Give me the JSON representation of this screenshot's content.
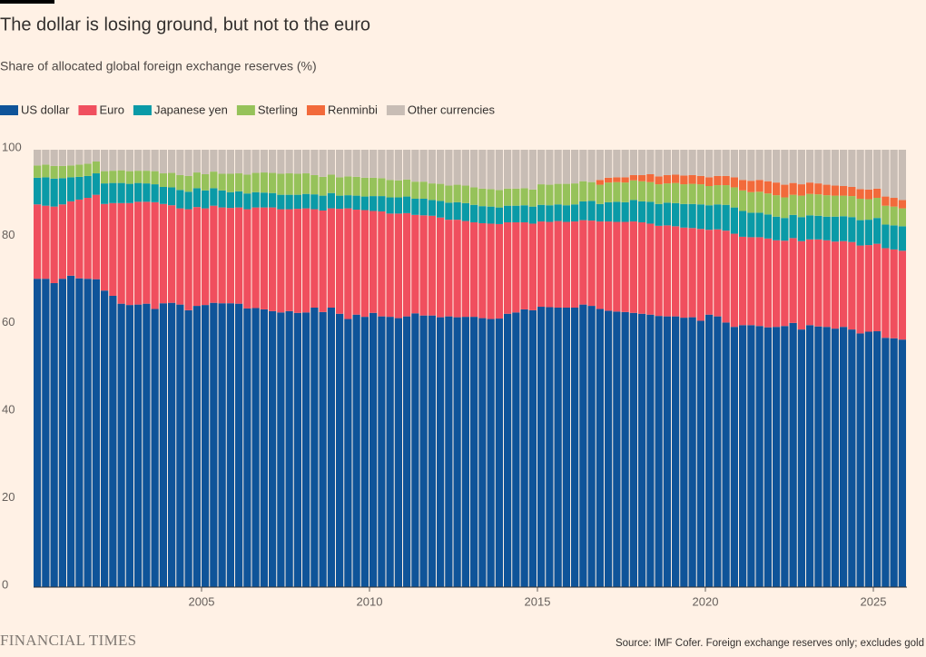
{
  "chart_data": {
    "type": "stacked-bar",
    "title": "The dollar is losing ground, but not to the euro",
    "subtitle": "Share of allocated global foreign exchange reserves (%)",
    "source": "Source: IMF Cofer. Foreign exchange reserves only; excludes gold",
    "brand": "FINANCIAL TIMES",
    "x": [
      2000,
      2000.25,
      2000.5,
      2000.75,
      2001,
      2001.25,
      2001.5,
      2001.75,
      2002,
      2002.25,
      2002.5,
      2002.75,
      2003,
      2003.25,
      2003.5,
      2003.75,
      2004,
      2004.25,
      2004.5,
      2004.75,
      2005,
      2005.25,
      2005.5,
      2005.75,
      2006,
      2006.25,
      2006.5,
      2006.75,
      2007,
      2007.25,
      2007.5,
      2007.75,
      2008,
      2008.25,
      2008.5,
      2008.75,
      2009,
      2009.25,
      2009.5,
      2009.75,
      2010,
      2010.25,
      2010.5,
      2010.75,
      2011,
      2011.25,
      2011.5,
      2011.75,
      2012,
      2012.25,
      2012.5,
      2012.75,
      2013,
      2013.25,
      2013.5,
      2013.75,
      2014,
      2014.25,
      2014.5,
      2014.75,
      2015,
      2015.25,
      2015.5,
      2015.75,
      2016,
      2016.25,
      2016.5,
      2016.75,
      2017,
      2017.25,
      2017.5,
      2017.75,
      2018,
      2018.25,
      2018.5,
      2018.75,
      2019,
      2019.25,
      2019.5,
      2019.75,
      2020,
      2020.25,
      2020.5,
      2020.75,
      2021,
      2021.25,
      2021.5,
      2021.75,
      2022,
      2022.25,
      2022.5,
      2022.75,
      2023,
      2023.25,
      2023.5,
      2023.75,
      2024,
      2024.25,
      2024.5,
      2024.75,
      2025,
      2025.25,
      2025.5,
      2025.75
    ],
    "bar_width": 0.25,
    "xlim": [
      2000,
      2026
    ],
    "xticks": [
      2005,
      2010,
      2015,
      2020,
      2025
    ],
    "ylim": [
      0,
      100
    ],
    "yticks": [
      0,
      20,
      40,
      60,
      80,
      100
    ],
    "series": [
      {
        "name": "US dollar",
        "color": "#0f5499",
        "values": [
          70.5,
          70.5,
          69.5,
          70.5,
          71.2,
          70.6,
          70.5,
          70.4,
          67.8,
          66.6,
          64.8,
          64.5,
          64.6,
          64.8,
          63.6,
          64.9,
          65.0,
          64.6,
          63.3,
          64.3,
          64.5,
          65.0,
          64.9,
          64.9,
          64.8,
          63.7,
          63.8,
          63.5,
          63.1,
          62.8,
          63.1,
          62.7,
          62.8,
          63.9,
          62.9,
          63.9,
          62.5,
          61.3,
          62.3,
          61.8,
          62.7,
          61.9,
          61.8,
          61.5,
          61.9,
          62.6,
          62.1,
          62.1,
          61.7,
          61.9,
          61.7,
          61.8,
          61.8,
          61.5,
          61.3,
          61.4,
          62.5,
          62.8,
          63.5,
          63.3,
          64.1,
          64.0,
          63.9,
          63.9,
          63.9,
          64.6,
          64.3,
          63.6,
          63.2,
          63.0,
          62.9,
          62.7,
          62.5,
          62.3,
          62.0,
          61.9,
          61.9,
          61.6,
          61.7,
          60.9,
          62.3,
          61.9,
          60.5,
          59.5,
          59.9,
          59.9,
          59.7,
          59.4,
          59.5,
          59.7,
          60.4,
          58.9,
          59.9,
          59.6,
          59.5,
          59.1,
          59.5,
          58.9,
          58.0,
          58.4,
          58.5,
          57.0,
          56.9,
          56.6
        ]
      },
      {
        "name": "Euro",
        "color": "#f04f5e",
        "values": [
          17.0,
          16.7,
          17.5,
          17.0,
          17.0,
          18.0,
          18.5,
          19.3,
          19.8,
          21.2,
          23.0,
          23.3,
          23.5,
          23.3,
          24.4,
          22.7,
          22.3,
          22.0,
          23.1,
          22.6,
          22.1,
          22.2,
          21.9,
          21.8,
          22.0,
          22.7,
          23.0,
          23.3,
          23.7,
          23.6,
          23.3,
          23.8,
          23.8,
          22.5,
          23.2,
          22.7,
          24.0,
          25.3,
          24.0,
          24.4,
          23.3,
          24.0,
          23.6,
          23.9,
          23.6,
          22.5,
          22.9,
          22.8,
          22.8,
          22.1,
          22.3,
          21.9,
          21.6,
          21.7,
          21.8,
          21.6,
          20.9,
          20.6,
          19.9,
          19.8,
          19.5,
          19.5,
          19.8,
          19.6,
          19.7,
          19.3,
          19.5,
          20.0,
          20.4,
          20.5,
          20.6,
          20.9,
          20.9,
          20.8,
          20.6,
          20.8,
          20.6,
          20.6,
          20.4,
          21.0,
          19.4,
          19.9,
          21.0,
          21.3,
          20.2,
          20.1,
          20.3,
          20.3,
          19.8,
          19.5,
          19.4,
          20.2,
          19.6,
          19.9,
          19.8,
          19.9,
          19.6,
          20.0,
          20.1,
          19.8,
          20.0,
          20.5,
          20.3,
          20.3
        ]
      },
      {
        "name": "Japanese yen",
        "color": "#0a9aa7",
        "values": [
          6.1,
          6.5,
          6.4,
          6.0,
          5.5,
          5.2,
          5.0,
          4.9,
          4.7,
          4.6,
          4.6,
          4.4,
          4.3,
          4.2,
          4.1,
          3.9,
          4.1,
          4.2,
          4.0,
          4.3,
          4.1,
          4.0,
          3.9,
          3.6,
          3.7,
          3.6,
          3.5,
          3.4,
          3.3,
          3.3,
          3.3,
          3.2,
          3.3,
          3.4,
          3.4,
          3.5,
          3.0,
          3.0,
          3.2,
          3.1,
          3.4,
          3.5,
          3.7,
          3.7,
          3.8,
          3.7,
          3.8,
          3.6,
          3.8,
          3.9,
          4.0,
          4.1,
          4.0,
          3.9,
          3.9,
          3.8,
          3.8,
          3.8,
          3.9,
          3.9,
          3.8,
          3.8,
          3.8,
          3.8,
          3.9,
          4.3,
          4.5,
          4.0,
          4.4,
          4.6,
          4.5,
          4.9,
          4.8,
          5.0,
          5.0,
          5.2,
          5.3,
          5.4,
          5.5,
          5.6,
          5.6,
          5.7,
          5.9,
          6.0,
          5.9,
          5.6,
          5.6,
          5.5,
          5.4,
          5.2,
          5.3,
          5.5,
          5.5,
          5.4,
          5.4,
          5.7,
          5.7,
          5.7,
          5.8,
          5.8,
          5.9,
          5.4,
          5.5,
          5.6
        ]
      },
      {
        "name": "Sterling",
        "color": "#96c25a",
        "values": [
          2.8,
          2.9,
          2.9,
          2.8,
          2.7,
          2.8,
          2.8,
          2.7,
          2.8,
          2.8,
          2.9,
          2.9,
          2.8,
          2.9,
          3.0,
          3.1,
          3.3,
          3.4,
          3.6,
          3.6,
          3.7,
          3.8,
          3.8,
          4.2,
          4.1,
          4.3,
          4.4,
          4.6,
          4.6,
          4.8,
          4.9,
          4.8,
          4.7,
          4.4,
          4.3,
          4.2,
          4.2,
          4.3,
          4.3,
          4.3,
          4.2,
          4.1,
          4.0,
          3.9,
          3.9,
          3.9,
          3.9,
          3.8,
          3.9,
          3.9,
          4.0,
          4.0,
          4.0,
          4.0,
          4.0,
          4.0,
          3.9,
          3.9,
          3.9,
          3.9,
          4.7,
          4.7,
          4.7,
          4.9,
          4.8,
          4.6,
          4.3,
          4.4,
          4.5,
          4.5,
          4.5,
          4.5,
          4.6,
          4.5,
          4.5,
          4.4,
          4.6,
          4.5,
          4.6,
          4.6,
          4.4,
          4.4,
          4.5,
          4.6,
          4.7,
          4.7,
          4.8,
          4.8,
          4.9,
          4.7,
          4.6,
          4.9,
          4.9,
          4.9,
          4.9,
          4.8,
          4.7,
          4.8,
          4.9,
          4.7,
          4.6,
          4.3,
          4.3,
          4.1
        ]
      },
      {
        "name": "Renminbi",
        "color": "#f26a3b",
        "values": [
          null,
          null,
          null,
          null,
          null,
          null,
          null,
          null,
          null,
          null,
          null,
          null,
          null,
          null,
          null,
          null,
          null,
          null,
          null,
          null,
          null,
          null,
          null,
          null,
          null,
          null,
          null,
          null,
          null,
          null,
          null,
          null,
          null,
          null,
          null,
          null,
          null,
          null,
          null,
          null,
          null,
          null,
          null,
          null,
          null,
          null,
          null,
          null,
          null,
          null,
          null,
          null,
          null,
          null,
          null,
          null,
          null,
          null,
          null,
          null,
          null,
          null,
          null,
          null,
          null,
          null,
          null,
          1.1,
          1.1,
          1.1,
          1.2,
          1.2,
          1.4,
          1.8,
          1.8,
          1.9,
          1.9,
          2.0,
          2.0,
          1.9,
          2.0,
          2.1,
          2.1,
          2.3,
          2.4,
          2.6,
          2.7,
          2.8,
          2.9,
          2.9,
          2.7,
          2.6,
          2.6,
          2.5,
          2.4,
          2.3,
          2.2,
          2.1,
          2.2,
          2.2,
          2.1,
          2.1,
          2.0,
          1.9
        ]
      },
      {
        "name": "Other currencies",
        "color": "#c8bdb5",
        "values": [
          3.6,
          3.4,
          3.7,
          3.7,
          3.6,
          3.4,
          3.2,
          2.7,
          4.9,
          4.8,
          4.7,
          4.9,
          4.8,
          4.8,
          4.9,
          5.4,
          5.3,
          5.8,
          6.0,
          5.2,
          5.6,
          5.0,
          5.5,
          5.5,
          5.4,
          5.7,
          5.3,
          5.2,
          5.3,
          5.5,
          5.4,
          5.5,
          5.4,
          5.8,
          6.2,
          5.7,
          6.3,
          6.1,
          6.2,
          6.4,
          6.4,
          6.5,
          6.9,
          7.0,
          6.8,
          7.3,
          7.3,
          7.7,
          7.8,
          8.2,
          8.0,
          8.2,
          8.6,
          8.9,
          9.0,
          9.2,
          8.9,
          8.9,
          8.8,
          9.1,
          7.9,
          8.0,
          7.8,
          7.8,
          7.7,
          7.2,
          7.4,
          6.9,
          6.4,
          6.3,
          6.3,
          5.8,
          5.8,
          5.6,
          6.1,
          5.8,
          5.7,
          5.9,
          5.8,
          6.0,
          6.3,
          6.0,
          6.0,
          6.3,
          6.9,
          7.1,
          6.9,
          7.2,
          7.5,
          8.0,
          7.6,
          7.9,
          7.5,
          7.7,
          8.0,
          8.2,
          8.3,
          8.5,
          9.0,
          9.1,
          8.9,
          10.7,
          11.0,
          11.5
        ]
      }
    ]
  }
}
